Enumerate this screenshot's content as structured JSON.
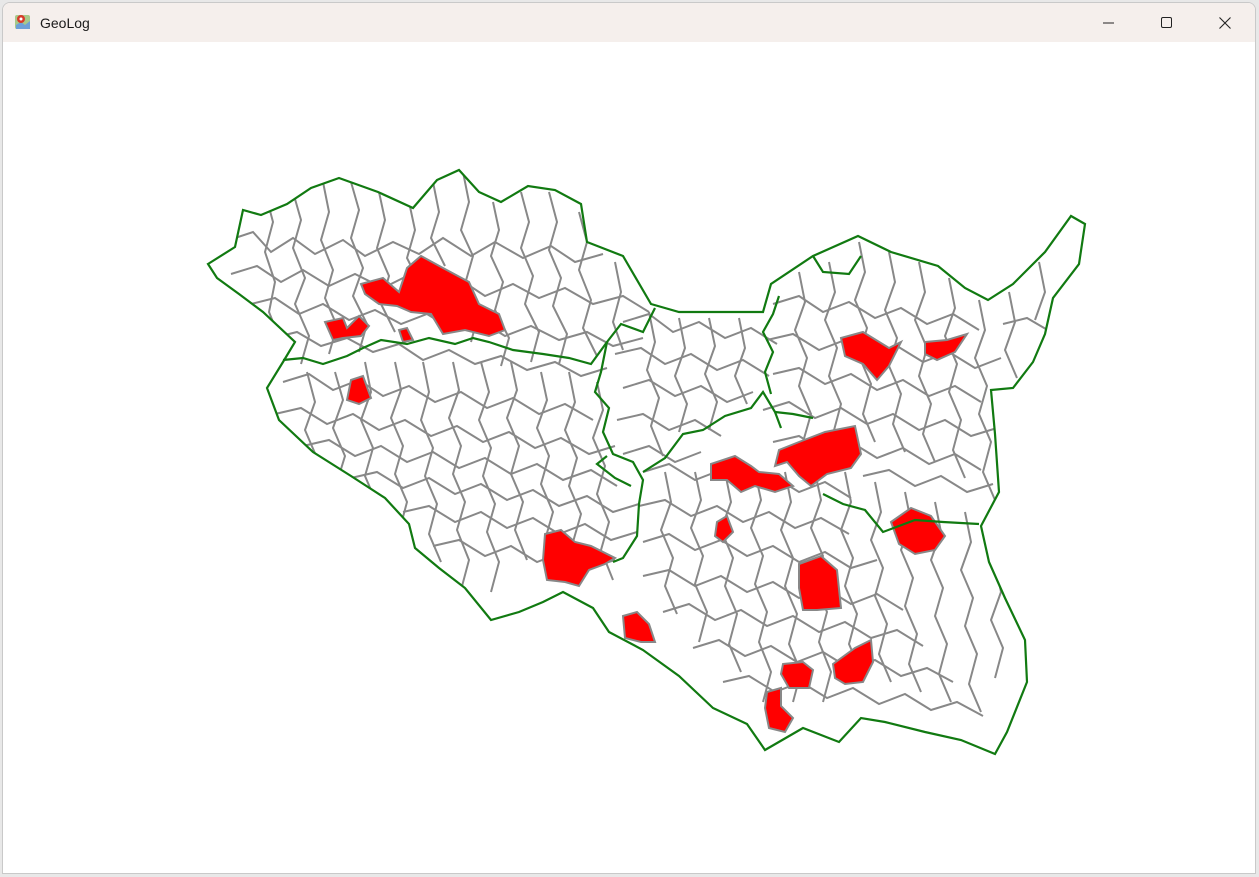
{
  "window": {
    "title": "GeoLog",
    "app_icon": "map-pin-icon",
    "controls": {
      "minimize_icon": "minimize-icon",
      "maximize_icon": "maximize-icon",
      "close_icon": "close-icon"
    }
  },
  "map": {
    "colors": {
      "region_border": "#117a11",
      "municipality_border": "#888888",
      "municipality_fill": "#ffffff",
      "highlight_fill": "#ff0000"
    }
  }
}
